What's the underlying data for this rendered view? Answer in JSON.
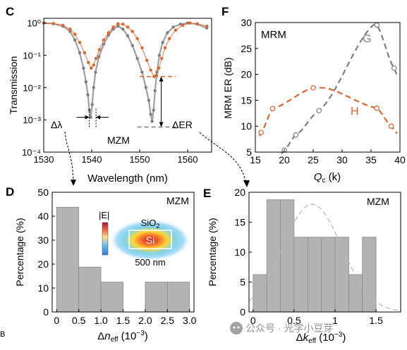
{
  "panel_letters": {
    "C": "C",
    "D": "D",
    "E": "E",
    "F": "F",
    "B": "B"
  },
  "colors": {
    "grey": "#7f7f7f",
    "orange": "#e0652a",
    "bar": "#b3b3b3",
    "bar_edge": "#8c8c8c"
  },
  "watermark": "公众号 · 光学小豆芽",
  "chart_data": [
    {
      "panel": "C",
      "type": "line",
      "title": "",
      "label": "MZM",
      "xlabel": "Wavelength (nm)",
      "ylabel": "Transmission",
      "xlim": [
        1530,
        1565
      ],
      "ylim": [
        0.0001,
        1.4
      ],
      "yscale": "log",
      "xticks": [
        1530,
        1540,
        1550,
        1560
      ],
      "yticks": [
        {
          "value": 1,
          "label": "10⁰"
        },
        {
          "value": 0.1,
          "label": "10⁻¹"
        },
        {
          "value": 0.01,
          "label": "10⁻²"
        },
        {
          "value": 0.001,
          "label": "10⁻³"
        },
        {
          "value": 0.0001,
          "label": "10⁻⁴"
        }
      ],
      "series": [
        {
          "color": "#7f7f7f",
          "style": "markers",
          "x": [
            1530,
            1532,
            1534,
            1535.5,
            1536.5,
            1537.5,
            1538.3,
            1538.8,
            1539.2,
            1539.5,
            1539.8,
            1540.1,
            1540.4,
            1540.8,
            1541.5,
            1542.5,
            1543.5,
            1544.5,
            1545.5,
            1546.5,
            1547.5,
            1548.5,
            1549.5,
            1550.5,
            1551.3,
            1551.9,
            1552.3,
            1552.6,
            1552.9,
            1553.2,
            1553.6,
            1554.1,
            1554.8,
            1555.8,
            1557,
            1558.5,
            1560,
            1562,
            1564
          ],
          "y": [
            1.0,
            0.95,
            0.8,
            0.55,
            0.3,
            0.12,
            0.04,
            0.015,
            0.006,
            0.002,
            0.0012,
            0.003,
            0.01,
            0.03,
            0.09,
            0.22,
            0.42,
            0.65,
            0.8,
            0.65,
            0.4,
            0.2,
            0.08,
            0.03,
            0.01,
            0.004,
            0.0015,
            0.0009,
            0.002,
            0.008,
            0.03,
            0.1,
            0.25,
            0.5,
            0.75,
            0.92,
            1.0,
            0.92,
            0.7
          ]
        },
        {
          "color": "#e0652a",
          "style": "markers",
          "x": [
            1530,
            1532,
            1534,
            1535.5,
            1536.5,
            1537.5,
            1538.5,
            1539.3,
            1539.9,
            1540.4,
            1540.9,
            1541.6,
            1542.5,
            1543.5,
            1544.5,
            1545.5,
            1546.5,
            1547.5,
            1548.5,
            1549.5,
            1550.5,
            1551.5,
            1552.3,
            1553,
            1553.5,
            1554,
            1554.6,
            1555.3,
            1556.2,
            1557.5,
            1559,
            1560.5,
            1562,
            1564
          ],
          "y": [
            1.0,
            0.97,
            0.85,
            0.65,
            0.45,
            0.25,
            0.12,
            0.06,
            0.04,
            0.05,
            0.08,
            0.15,
            0.3,
            0.5,
            0.75,
            0.95,
            0.92,
            0.75,
            0.55,
            0.33,
            0.17,
            0.07,
            0.035,
            0.022,
            0.024,
            0.04,
            0.08,
            0.17,
            0.33,
            0.6,
            0.85,
            1.0,
            0.95,
            0.8
          ]
        }
      ],
      "annotations": [
        {
          "text": "Δλ",
          "kind": "bracket",
          "x_from": 1539.5,
          "x_to": 1540.9,
          "y": 0.0012
        },
        {
          "text": "ΔER",
          "kind": "double-arrow",
          "x": 1554.5,
          "y_from": 0.0006,
          "y_to": 0.022
        }
      ]
    },
    {
      "panel": "F",
      "type": "scatter",
      "title": "",
      "label": "MRM",
      "xlabel": "Q_c (k)",
      "ylabel": "MRM ER (dB)",
      "xlim": [
        15,
        40
      ],
      "ylim": [
        5,
        30
      ],
      "xticks": [
        15,
        20,
        25,
        30,
        35,
        40
      ],
      "yticks": [
        5,
        10,
        15,
        20,
        25,
        30
      ],
      "series": [
        {
          "name": "G",
          "color": "#7f7f7f",
          "x": [
            20,
            22,
            26,
            36,
            39
          ],
          "y": [
            5.4,
            8.3,
            13,
            29.5,
            21.2
          ],
          "fit": {
            "x_from": 19.5,
            "x_to": 39.5,
            "peak_x": 35.5,
            "peak_y": 29.6
          }
        },
        {
          "name": "H",
          "color": "#e0652a",
          "x": [
            16,
            18,
            25,
            36,
            38.5
          ],
          "y": [
            8.8,
            13.4,
            17.4,
            13.5,
            10
          ],
          "fit": {
            "x_from": 15.7,
            "x_to": 39.5,
            "peak_x": 27,
            "peak_y": 17.4
          }
        }
      ]
    },
    {
      "panel": "D",
      "type": "bar",
      "title": "",
      "label": "MZM",
      "xlabel": "Δn_eff (10⁻³)",
      "ylabel": "Percentage (%)",
      "xlim": [
        -0.1,
        3.1
      ],
      "ylim": [
        0,
        50
      ],
      "xticks": [
        0,
        0.5,
        1.0,
        1.5,
        2.0,
        2.5,
        3.0
      ],
      "yticks": [
        0,
        10,
        20,
        30,
        40,
        50
      ],
      "bin_edges": [
        0,
        0.5,
        1.0,
        1.5,
        2.0,
        2.5,
        3.0
      ],
      "values": [
        43.75,
        18.75,
        12.5,
        0,
        12.5,
        12.5
      ],
      "inset": {
        "field_label": "|E|",
        "cladding": "SiO₂",
        "core": "Si",
        "width_label": "500 nm"
      }
    },
    {
      "panel": "E",
      "type": "bar",
      "title": "",
      "label": "MZM",
      "xlabel": "Δk_eff (10⁻³)",
      "ylabel": "Percentage (%)",
      "xlim": [
        -0.05,
        1.8
      ],
      "ylim": [
        0,
        20
      ],
      "xticks": [
        0,
        0.5,
        1.0,
        1.5
      ],
      "yticks": [
        0,
        5,
        10,
        15,
        20
      ],
      "bin_edges": [
        0,
        0.167,
        0.333,
        0.5,
        0.667,
        0.833,
        1.0,
        1.167,
        1.333,
        1.5
      ],
      "values": [
        6.25,
        18.75,
        18.75,
        12.5,
        12.5,
        12.5,
        12.5,
        6.25,
        12.5
      ],
      "fit": {
        "mean": 0.72,
        "sigma": 0.36,
        "peak": 18
      }
    }
  ]
}
